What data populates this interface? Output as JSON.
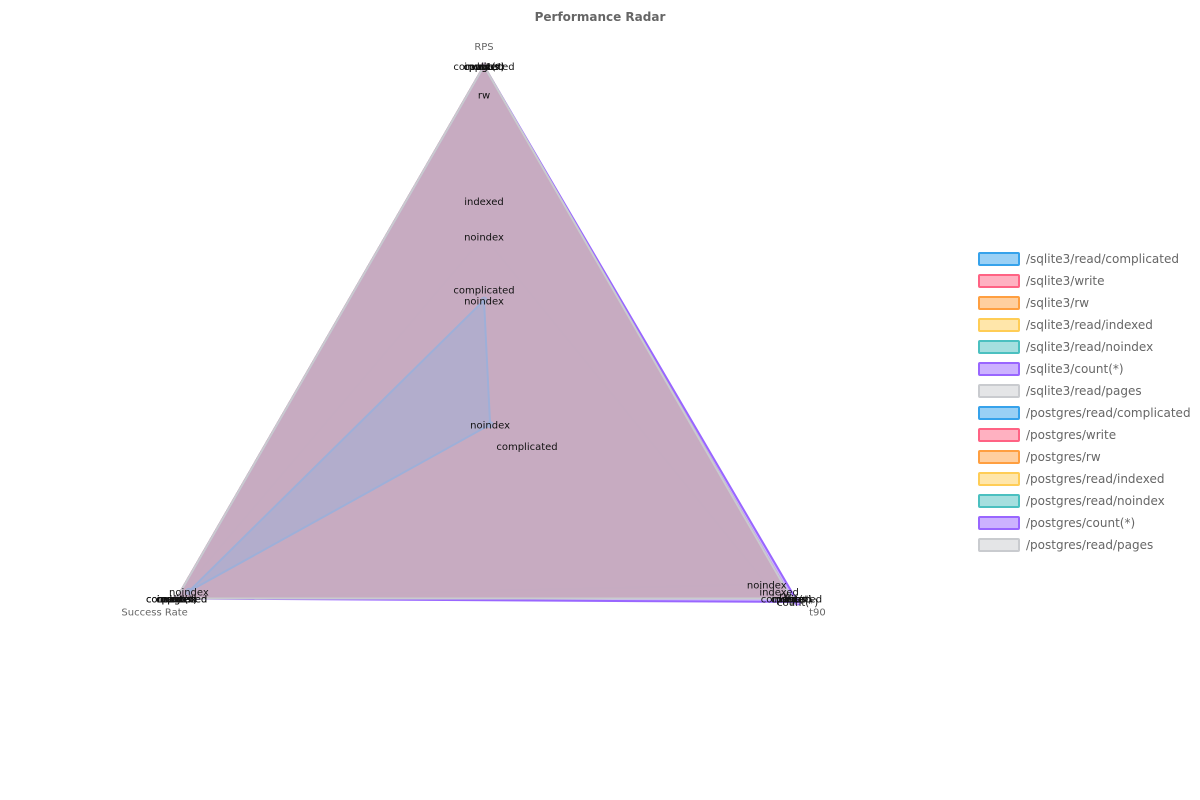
{
  "chart_data": {
    "type": "radar",
    "title": "Performance Radar",
    "axes": [
      "RPS",
      "t90",
      "Success Rate"
    ],
    "series": [
      {
        "name": "/sqlite3/read/complicated",
        "label": "complicated",
        "color": "#36a2eb",
        "fill": "rgba(54,162,235,0.5)",
        "values": [
          0.37,
          0.14,
          1.0
        ]
      },
      {
        "name": "/sqlite3/write",
        "label": "write",
        "color": "#ff6384",
        "fill": "rgba(255,99,132,0.5)",
        "values": [
          1.0,
          1.0,
          1.0
        ]
      },
      {
        "name": "/sqlite3/rw",
        "label": "rw",
        "color": "#ff9f40",
        "fill": "rgba(255,159,64,0.5)",
        "values": [
          0.92,
          0.98,
          1.0
        ]
      },
      {
        "name": "/sqlite3/read/indexed",
        "label": "indexed",
        "color": "#ffcd56",
        "fill": "rgba(255,205,86,0.5)",
        "values": [
          0.62,
          0.96,
          1.0
        ]
      },
      {
        "name": "/sqlite3/read/noindex",
        "label": "noindex",
        "color": "#4bc0c0",
        "fill": "rgba(75,192,192,0.5)",
        "values": [
          0.52,
          0.92,
          1.0
        ]
      },
      {
        "name": "/sqlite3/count(*)",
        "label": "count(*)",
        "color": "#9966ff",
        "fill": "rgba(153,102,255,0.5)",
        "values": [
          1.0,
          1.0,
          1.0
        ]
      },
      {
        "name": "/sqlite3/read/pages",
        "label": "pages",
        "color": "#c9cbcf",
        "fill": "rgba(201,203,207,0.5)",
        "values": [
          1.0,
          1.0,
          1.0
        ]
      },
      {
        "name": "/postgres/read/complicated",
        "label": "complicated",
        "color": "#36a2eb",
        "fill": "rgba(54,162,235,0.5)",
        "values": [
          1.0,
          1.0,
          1.0
        ]
      },
      {
        "name": "/postgres/write",
        "label": "write",
        "color": "#ff6384",
        "fill": "rgba(255,99,132,0.5)",
        "values": [
          1.0,
          1.0,
          1.0
        ]
      },
      {
        "name": "/postgres/rw",
        "label": "rw",
        "color": "#ff9f40",
        "fill": "rgba(255,159,64,0.5)",
        "values": [
          1.0,
          1.0,
          1.0
        ]
      },
      {
        "name": "/postgres/read/indexed",
        "label": "indexed",
        "color": "#ffcd56",
        "fill": "rgba(255,205,86,0.5)",
        "values": [
          1.0,
          1.0,
          1.0
        ]
      },
      {
        "name": "/postgres/read/noindex",
        "label": "noindex",
        "color": "#4bc0c0",
        "fill": "rgba(75,192,192,0.5)",
        "values": [
          0.34,
          0.02,
          0.96
        ]
      },
      {
        "name": "/postgres/count(*)",
        "label": "count(*)",
        "color": "#9966ff",
        "fill": "rgba(153,102,255,0.5)",
        "values": [
          1.0,
          1.02,
          1.0
        ]
      },
      {
        "name": "/postgres/read/pages",
        "label": "pages",
        "color": "#c9cbcf",
        "fill": "rgba(201,203,207,0.5)",
        "values": [
          1.0,
          1.0,
          1.0
        ]
      }
    ],
    "range": [
      0,
      1
    ],
    "grid": false,
    "legend_position": "right"
  }
}
